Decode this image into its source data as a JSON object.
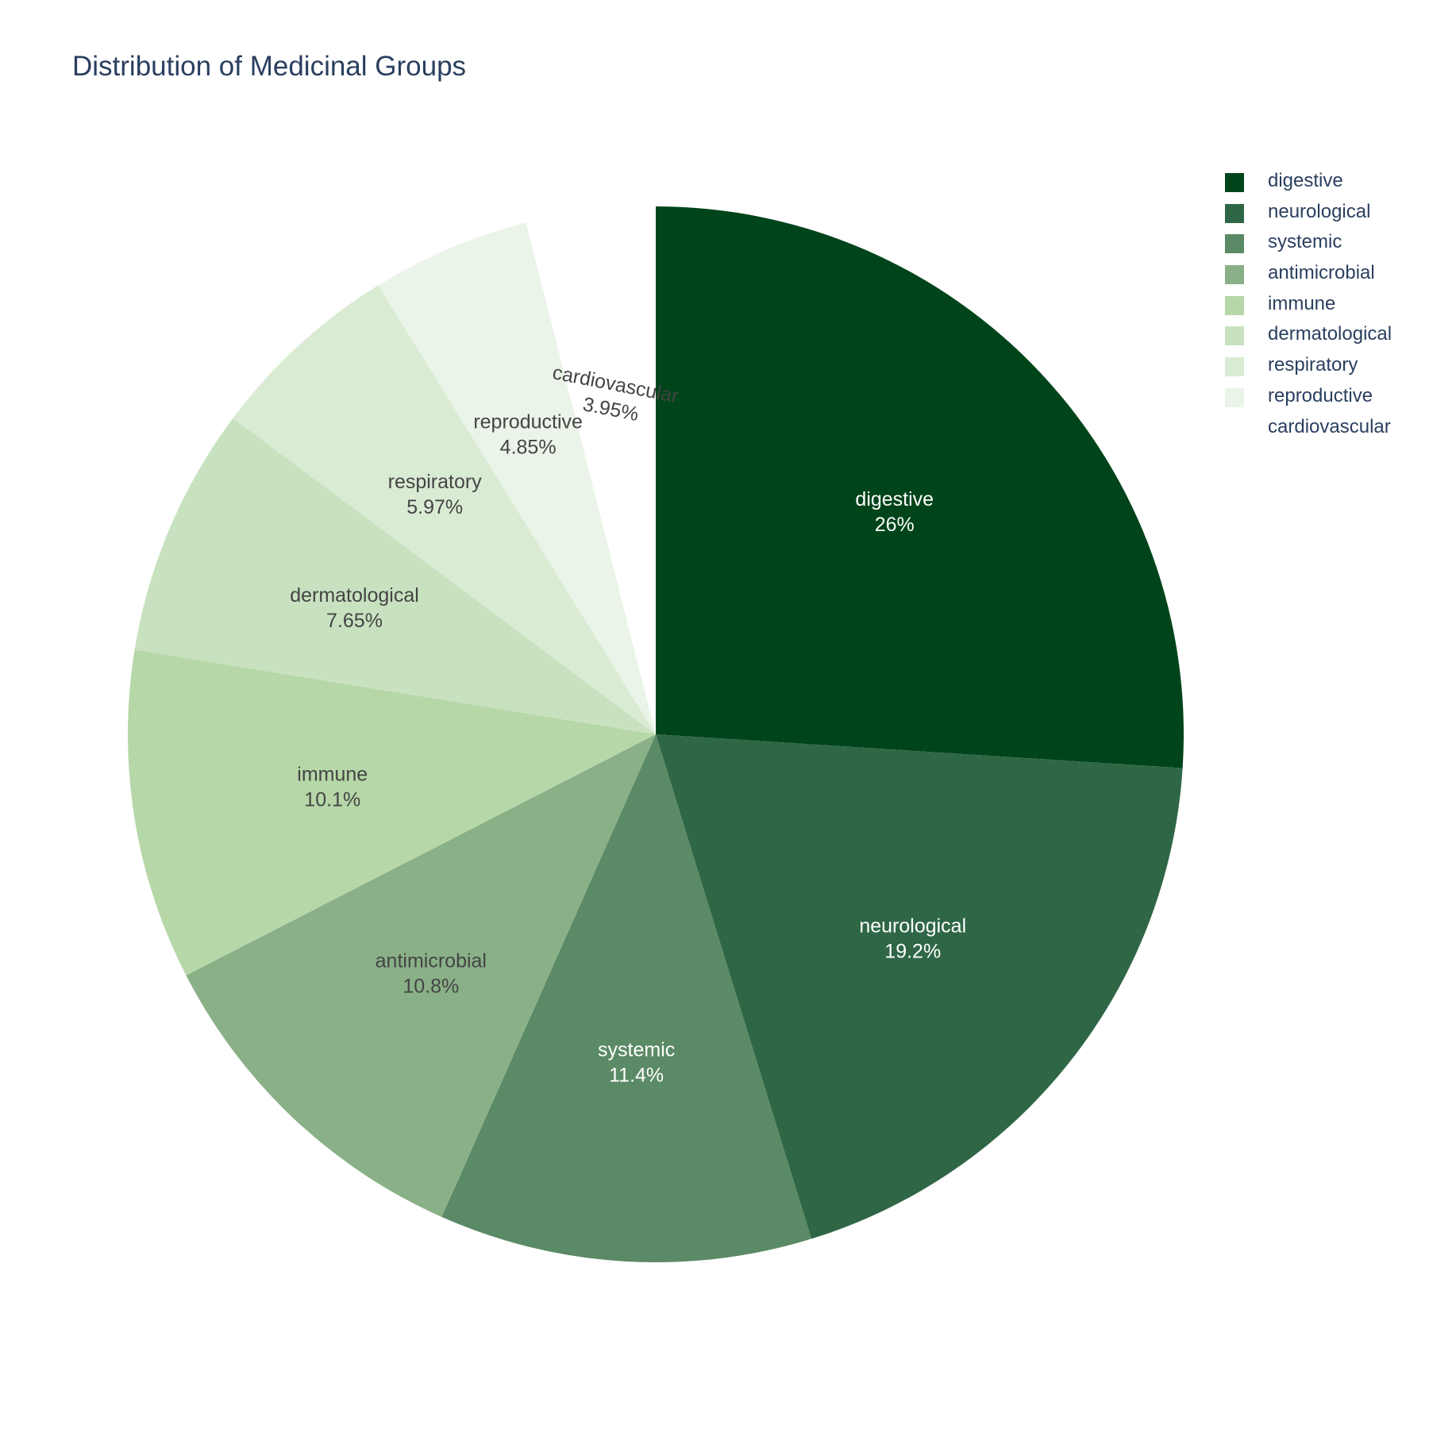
{
  "chart_data": {
    "type": "pie",
    "title": "Distribution of Medicinal Groups",
    "slices": [
      {
        "label": "digestive",
        "percent": 26.0,
        "percent_text": "26%",
        "color": "#00441b"
      },
      {
        "label": "neurological",
        "percent": 19.2,
        "percent_text": "19.2%",
        "color": "#2f6746"
      },
      {
        "label": "systemic",
        "percent": 11.4,
        "percent_text": "11.4%",
        "color": "#5b8a66"
      },
      {
        "label": "antimicrobial",
        "percent": 10.8,
        "percent_text": "10.8%",
        "color": "#8ab088"
      },
      {
        "label": "immune",
        "percent": 10.1,
        "percent_text": "10.1%",
        "color": "#b6d7a8"
      },
      {
        "label": "dermatological",
        "percent": 7.65,
        "percent_text": "7.65%",
        "color": "#c8e2c0"
      },
      {
        "label": "respiratory",
        "percent": 5.97,
        "percent_text": "5.97%",
        "color": "#daebd4"
      },
      {
        "label": "reproductive",
        "percent": 4.85,
        "percent_text": "4.85%",
        "color": "#ebf4e8"
      },
      {
        "label": "cardiovascular",
        "percent": 3.95,
        "percent_text": "3.95%",
        "color": "#ffffff"
      }
    ],
    "legend_position": "top-right",
    "pulled_slice": "cardiovascular"
  }
}
